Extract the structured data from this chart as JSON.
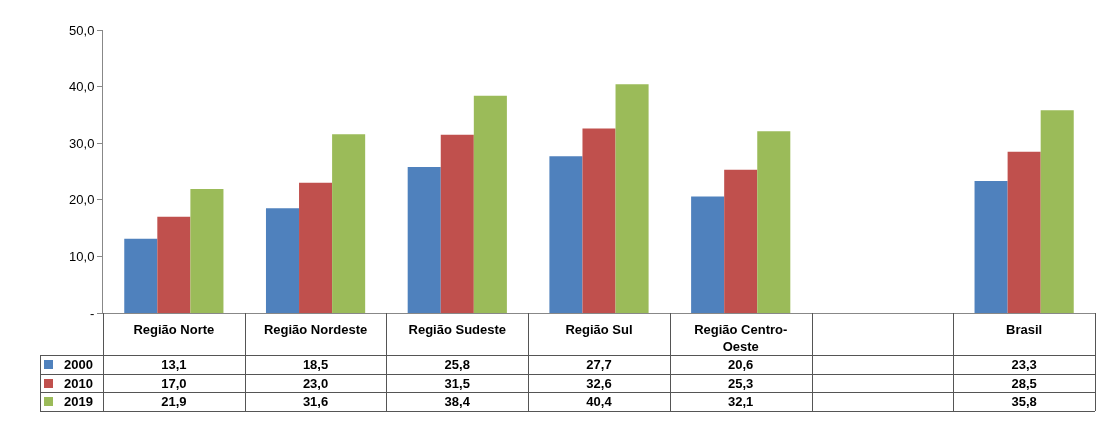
{
  "chart_data": {
    "type": "bar",
    "categories": [
      "Região Norte",
      "Região Nordeste",
      "Região Sudeste",
      "Região Sul",
      "Região Centro-Oeste",
      null,
      "Brasil"
    ],
    "series": [
      {
        "name": "2000",
        "color": "#4f81bd",
        "values": [
          13.1,
          18.5,
          25.8,
          27.7,
          20.6,
          null,
          23.3
        ],
        "value_labels": [
          "13,1",
          "18,5",
          "25,8",
          "27,7",
          "20,6",
          null,
          "23,3"
        ]
      },
      {
        "name": "2010",
        "color": "#c0504d",
        "values": [
          17.0,
          23.0,
          31.5,
          32.6,
          25.3,
          null,
          28.5
        ],
        "value_labels": [
          "17,0",
          "23,0",
          "31,5",
          "32,6",
          "25,3",
          null,
          "28,5"
        ]
      },
      {
        "name": "2019",
        "color": "#9bbb59",
        "values": [
          21.9,
          31.6,
          38.4,
          40.4,
          32.1,
          null,
          35.8
        ],
        "value_labels": [
          "21,9",
          "31,6",
          "38,4",
          "40,4",
          "32,1",
          null,
          "35,8"
        ]
      }
    ],
    "ylim": [
      0,
      50
    ],
    "yticks": [
      {
        "value": 0,
        "label": "-"
      },
      {
        "value": 10,
        "label": "10,0"
      },
      {
        "value": 20,
        "label": "20,0"
      },
      {
        "value": 30,
        "label": "30,0"
      },
      {
        "value": 40,
        "label": "40,0"
      },
      {
        "value": 50,
        "label": "50,0"
      }
    ],
    "grid": false,
    "legend": "bottom left"
  }
}
